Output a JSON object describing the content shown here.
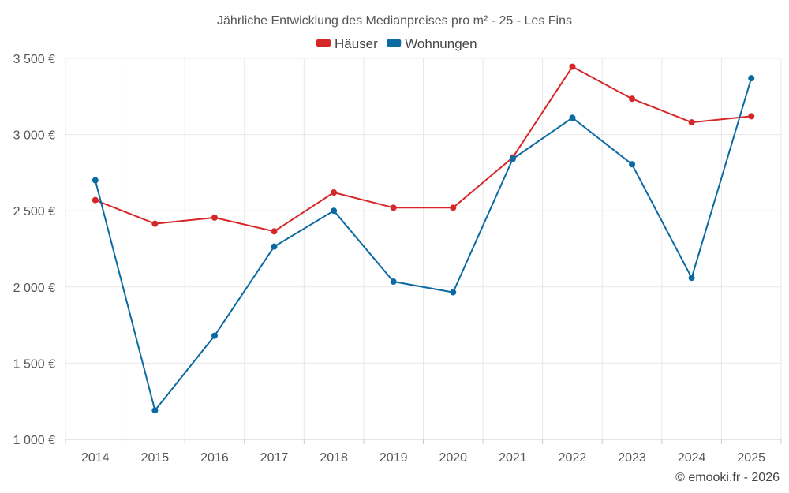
{
  "chart_data": {
    "type": "line",
    "title": "Jährliche Entwicklung des Medianpreises pro m² - 25 - Les Fins",
    "categories": [
      "2014",
      "2015",
      "2016",
      "2017",
      "2018",
      "2019",
      "2020",
      "2021",
      "2022",
      "2023",
      "2024",
      "2025"
    ],
    "series": [
      {
        "name": "Häuser",
        "color": "#d62728",
        "values": [
          2570,
          2415,
          2455,
          2365,
          2620,
          2520,
          2520,
          2850,
          3445,
          3235,
          3080,
          3120
        ]
      },
      {
        "name": "Wohnungen",
        "color": "#0b6aa2",
        "values": [
          2700,
          1190,
          1680,
          2265,
          2500,
          2035,
          1965,
          2840,
          3110,
          2805,
          2060,
          3370
        ]
      }
    ],
    "ylim": [
      1000,
      3500
    ],
    "yticks": [
      1000,
      1500,
      2000,
      2500,
      3000,
      3500
    ],
    "ytick_labels": [
      "1 000 €",
      "1 500 €",
      "2 000 €",
      "2 500 €",
      "3 000 €",
      "3 500 €"
    ],
    "xlabel": "",
    "ylabel": "",
    "legend_position": "top-center",
    "grid": true
  },
  "credit": "© emooki.fr - 2026"
}
